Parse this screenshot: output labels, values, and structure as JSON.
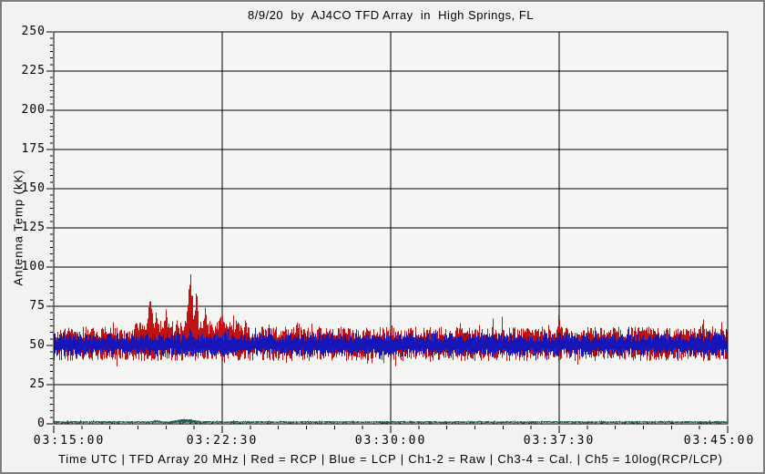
{
  "window": {
    "background": "#f2f2f0",
    "border_color": "#7c7c7c"
  },
  "header": {
    "title": "8/9/20  by  AJ4CO TFD Array  in  High Springs, FL"
  },
  "status_bar": {
    "text": "Time UTC | TFD Array 20 MHz | Red = RCP | Blue = LCP | Ch1-2 = Raw | Ch3-4 = Cal. | Ch5 = 10log(RCP/LCP)"
  },
  "chart_data": {
    "type": "line",
    "title": "8/9/20  by  AJ4CO TFD Array  in  High Springs, FL",
    "xlabel": "Time UTC",
    "ylabel": "Antenna Temp (kK)",
    "x_ticks": [
      "03:15:00",
      "03:22:30",
      "03:30:00",
      "03:37:30",
      "03:45:00"
    ],
    "x_range_seconds": [
      0,
      1800
    ],
    "x_minor_divisions": 6,
    "y_ticks": [
      0,
      25,
      50,
      75,
      100,
      125,
      150,
      175,
      200,
      225,
      250
    ],
    "ylim": [
      0,
      250
    ],
    "y_major_step": 25,
    "y_minor_divisions": 6,
    "grid": true,
    "legend": "none",
    "plot_bg": "#f5f5f3",
    "grid_color": "#000000",
    "axis_color": "#000000",
    "bursts_format": "[seconds_after_03:15:00, half_width_seconds, peak_kK]",
    "series": [
      {
        "name": "RCP raw (Ch1-2, Red)",
        "color": "#c01414",
        "kind": "noise-band",
        "baseline": 51,
        "band_top": 62,
        "band_bottom": 40,
        "elevated_interval": [
          215,
          515,
          5
        ],
        "bursts": [
          [
            258,
            16,
            83
          ],
          [
            274,
            10,
            76
          ],
          [
            300,
            14,
            74
          ],
          [
            330,
            12,
            70
          ],
          [
            365,
            14,
            106
          ],
          [
            381,
            10,
            90
          ],
          [
            405,
            12,
            76
          ],
          [
            445,
            14,
            72
          ],
          [
            470,
            10,
            68
          ],
          [
            500,
            10,
            66
          ],
          [
            575,
            8,
            66
          ],
          [
            650,
            8,
            68
          ],
          [
            1350,
            8,
            74
          ],
          [
            1735,
            8,
            68
          ]
        ]
      },
      {
        "name": "LCP raw (Ch1-2, Blue)",
        "color": "#1515b8",
        "kind": "noise-band",
        "baseline": 50,
        "band_top": 58,
        "band_bottom": 43,
        "bursts": [
          [
            365,
            12,
            62
          ],
          [
            1350,
            6,
            61
          ]
        ]
      },
      {
        "name": "Ch5 = 10log(RCP/LCP)",
        "color": "#2a5f55",
        "kind": "noise-band",
        "baseline": 1.1,
        "band_top": 1.9,
        "band_bottom": 0.3,
        "bursts": [
          [
            275,
            25,
            2.6
          ],
          [
            352,
            55,
            3.6
          ]
        ]
      }
    ]
  }
}
